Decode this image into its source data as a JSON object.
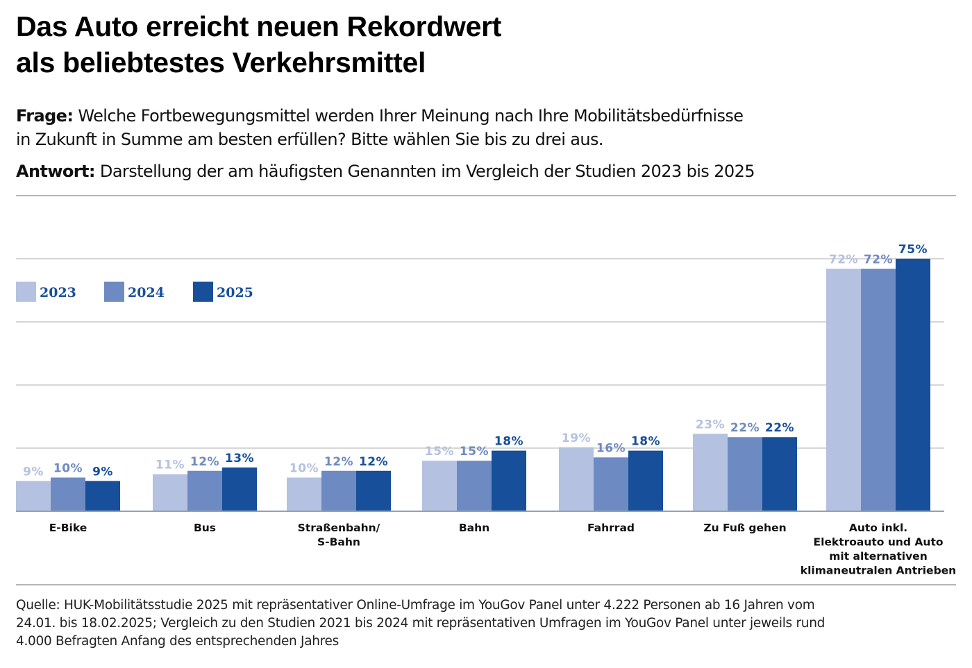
{
  "header": {
    "title_line1": "Das Auto erreicht neuen Rekordwert",
    "title_line2": "als beliebtestes Verkehrsmittel",
    "question_label": "Frage:",
    "question_line1": " Welche Fortbewegungsmittel werden Ihrer Meinung nach Ihre Mobilitätsbedürfnisse",
    "question_line2": "in Zukunft in Summe am besten erfüllen? Bitte wählen Sie bis zu drei aus.",
    "answer_label": "Antwort:",
    "answer_text": " Darstellung der am häufigsten Genannten im Vergleich der Studien 2023 bis 2025"
  },
  "footer": {
    "source_line1": "Quelle: HUK-Mobilitätsstudie 2025 mit repräsentativer Online-Umfrage im YouGov Panel unter 4.222 Personen ab 16 Jahren vom",
    "source_line2": "24.01. bis 18.02.2025; Vergleich zu den Studien 2021 bis 2024 mit repräsentativen Umfragen im YouGov Panel unter jeweils rund",
    "source_line3": "4.000 Befragten Anfang des entsprechenden Jahres"
  },
  "colors": {
    "2023": "#b5c1e0",
    "2024": "#6e8ac2",
    "2025": "#174f9a",
    "label_2023": "#b5c1e0",
    "label_2024": "#6e8ac2",
    "label_2025": "#174f9a",
    "gridline": "#bdbdbd",
    "axis": "#8fa3b8",
    "legend_text": "#174f9a"
  },
  "chart_data": {
    "type": "bar",
    "title": "Das Auto erreicht neuen Rekordwert als beliebtestes Verkehrsmittel",
    "xlabel": "",
    "ylabel": "",
    "ylim": [
      0,
      75
    ],
    "grid": true,
    "gridlines": [
      18.75,
      37.5,
      56.25,
      75
    ],
    "legend_position": "top-left",
    "value_suffix": "%",
    "categories": [
      [
        "E-Bike"
      ],
      [
        "Bus"
      ],
      [
        "Straßenbahn/",
        "S-Bahn"
      ],
      [
        "Bahn"
      ],
      [
        "Fahrrad"
      ],
      [
        "Zu Fuß gehen"
      ],
      [
        "Auto inkl.",
        "Elektroauto und Auto",
        "mit alternativen",
        "klimaneutralen Antrieben"
      ]
    ],
    "series": [
      {
        "name": "2023",
        "values": [
          9,
          11,
          10,
          15,
          19,
          23,
          72
        ]
      },
      {
        "name": "2024",
        "values": [
          10,
          12,
          12,
          15,
          16,
          22,
          72
        ]
      },
      {
        "name": "2025",
        "values": [
          9,
          13,
          12,
          18,
          18,
          22,
          75
        ]
      }
    ]
  }
}
